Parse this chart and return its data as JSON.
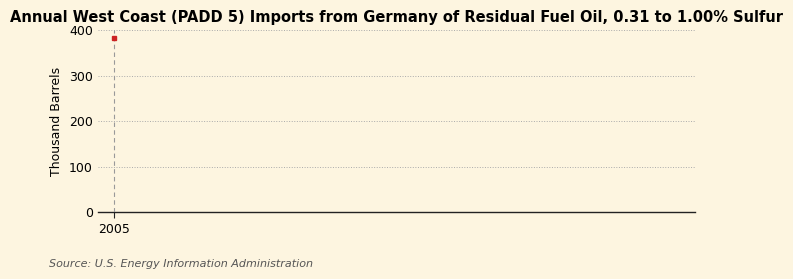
{
  "title": "Annual West Coast (PADD 5) Imports from Germany of Residual Fuel Oil, 0.31 to 1.00% Sulfur",
  "ylabel": "Thousand Barrels",
  "source_text": "Source: U.S. Energy Information Administration",
  "background_color": "#fdf5e0",
  "ylim": [
    0,
    400
  ],
  "yticks": [
    0,
    100,
    200,
    300,
    400
  ],
  "x_data": [
    2005
  ],
  "y_data": [
    382
  ],
  "data_color": "#cc2222",
  "grid_color": "#aaaaaa",
  "vline_color": "#999999",
  "title_fontsize": 10.5,
  "axis_label_fontsize": 9,
  "tick_fontsize": 9,
  "source_fontsize": 8,
  "xlim": [
    2004.5,
    2023
  ]
}
